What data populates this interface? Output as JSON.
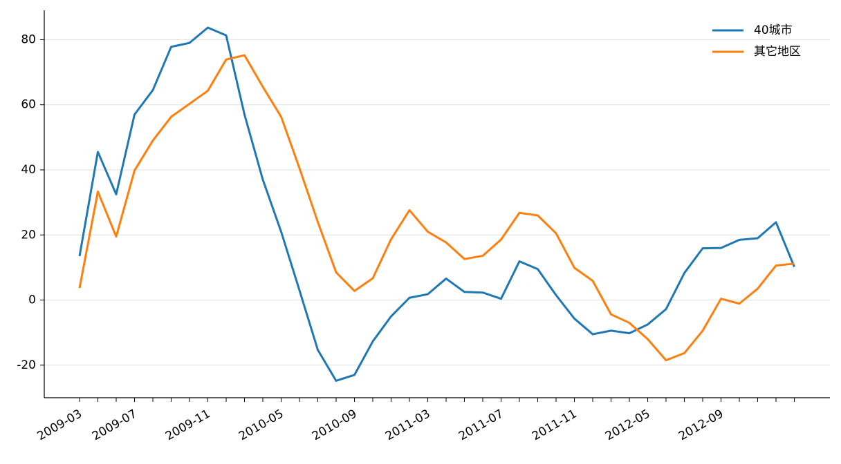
{
  "chart_data": {
    "type": "line",
    "categories": [
      "2009-03",
      null,
      null,
      "2009-07",
      null,
      null,
      null,
      "2009-11",
      null,
      null,
      null,
      "2010-05",
      null,
      null,
      null,
      "2010-09",
      null,
      null,
      null,
      "2011-03",
      null,
      null,
      null,
      "2011-07",
      null,
      null,
      null,
      "2011-11",
      null,
      null,
      null,
      "2012-05",
      null,
      null,
      null,
      "2012-09",
      null,
      null,
      null,
      null
    ],
    "series": [
      {
        "name": "40城市",
        "color": "#1f77b4",
        "values": [
          13.5,
          45.5,
          32.5,
          57,
          64.5,
          77.8,
          79,
          83.7,
          81.3,
          57,
          37,
          21,
          3,
          -15.3,
          -24.8,
          -23,
          -12.7,
          -5,
          0.7,
          1.8,
          6.6,
          2.5,
          2.3,
          0.4,
          11.9,
          9.5,
          1.5,
          -5.7,
          -10.5,
          -9.4,
          -10.2,
          -7.5,
          -2.8,
          8.3,
          15.9,
          16,
          18.5,
          19,
          23.9,
          10.2
        ]
      },
      {
        "name": "其它地区",
        "color": "#ff7f0e",
        "values": [
          3.7,
          33.3,
          19.5,
          39.8,
          49,
          56.3,
          60.3,
          64.3,
          73.9,
          75.2,
          65.5,
          56.3,
          40.5,
          24,
          8.5,
          2.8,
          6.7,
          18.7,
          27.6,
          21,
          17.7,
          12.6,
          13.6,
          18.6,
          26.8,
          26,
          20.5,
          9.9,
          5.9,
          -4.4,
          -7,
          -12,
          -18.5,
          -16.3,
          -9.4,
          0.4,
          -1.1,
          3.5,
          10.6,
          11.2
        ]
      }
    ],
    "ylim": [
      -30,
      89
    ],
    "yticks": [
      -20,
      0,
      20,
      40,
      60,
      80
    ],
    "grid": true,
    "legend": "upper right"
  }
}
